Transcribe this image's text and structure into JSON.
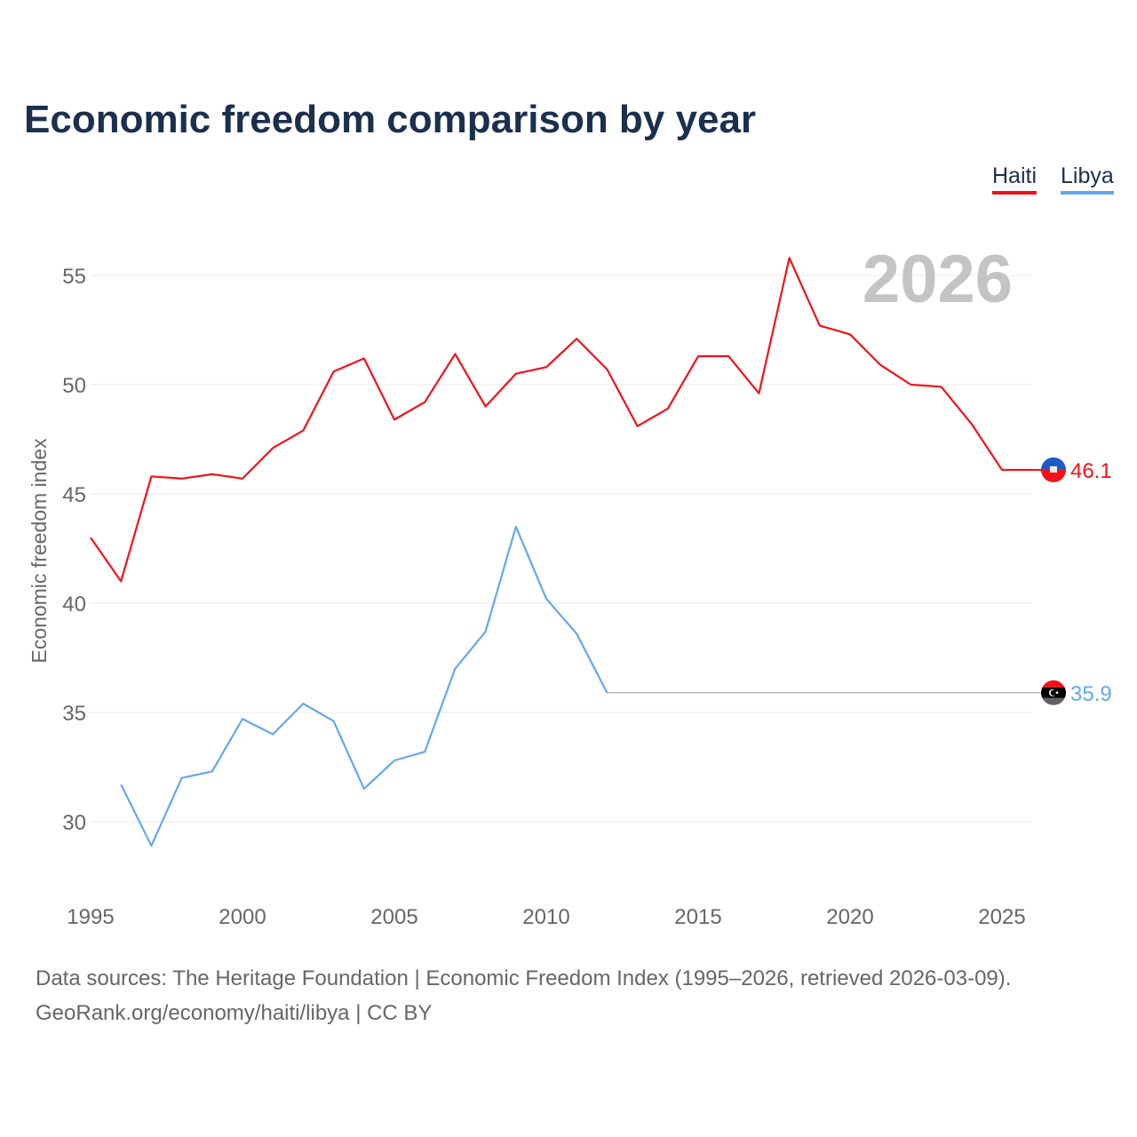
{
  "chart_data": {
    "type": "line",
    "title": "Economic freedom comparison by year",
    "ylabel": "Economic freedom index",
    "xlabel": "",
    "ylim": [
      27,
      57
    ],
    "xlim": [
      1995,
      2026
    ],
    "yticks": [
      30,
      35,
      40,
      45,
      50,
      55
    ],
    "xticks": [
      1995,
      2000,
      2005,
      2010,
      2015,
      2020,
      2025
    ],
    "grid": true,
    "legend_position": "top-right",
    "year_label": "2026",
    "series": [
      {
        "name": "Haiti",
        "color": "#f2111a",
        "end_label": "46.1",
        "x": [
          1995,
          1996,
          1997,
          1998,
          1999,
          2000,
          2001,
          2002,
          2003,
          2004,
          2005,
          2006,
          2007,
          2008,
          2009,
          2010,
          2011,
          2012,
          2013,
          2014,
          2015,
          2016,
          2017,
          2018,
          2019,
          2020,
          2021,
          2022,
          2023,
          2024,
          2025,
          2026
        ],
        "values": [
          43.0,
          41.0,
          45.8,
          45.7,
          45.9,
          45.7,
          47.1,
          47.9,
          50.6,
          51.2,
          48.4,
          49.2,
          51.4,
          49.0,
          50.5,
          50.8,
          52.1,
          50.7,
          48.1,
          48.9,
          51.3,
          51.3,
          49.6,
          55.8,
          52.7,
          52.3,
          50.9,
          50.0,
          49.9,
          48.2,
          46.1,
          46.1
        ]
      },
      {
        "name": "Libya",
        "color": "#63a7ee",
        "end_label": "35.9",
        "x": [
          1996,
          1997,
          1998,
          1999,
          2000,
          2001,
          2002,
          2003,
          2004,
          2005,
          2006,
          2007,
          2008,
          2009,
          2010,
          2011,
          2012
        ],
        "values": [
          31.7,
          28.9,
          32.0,
          32.3,
          34.7,
          34.0,
          35.4,
          34.6,
          31.5,
          32.8,
          33.2,
          37.0,
          38.7,
          43.5,
          40.2,
          38.6,
          35.9
        ],
        "carry_forward_to": 2026
      }
    ]
  },
  "footer": {
    "line1": "Data sources: The Heritage Foundation | Economic Freedom Index (1995–2026, retrieved 2026-03-09).",
    "line2": "GeoRank.org/economy/haiti/libya | CC BY"
  }
}
